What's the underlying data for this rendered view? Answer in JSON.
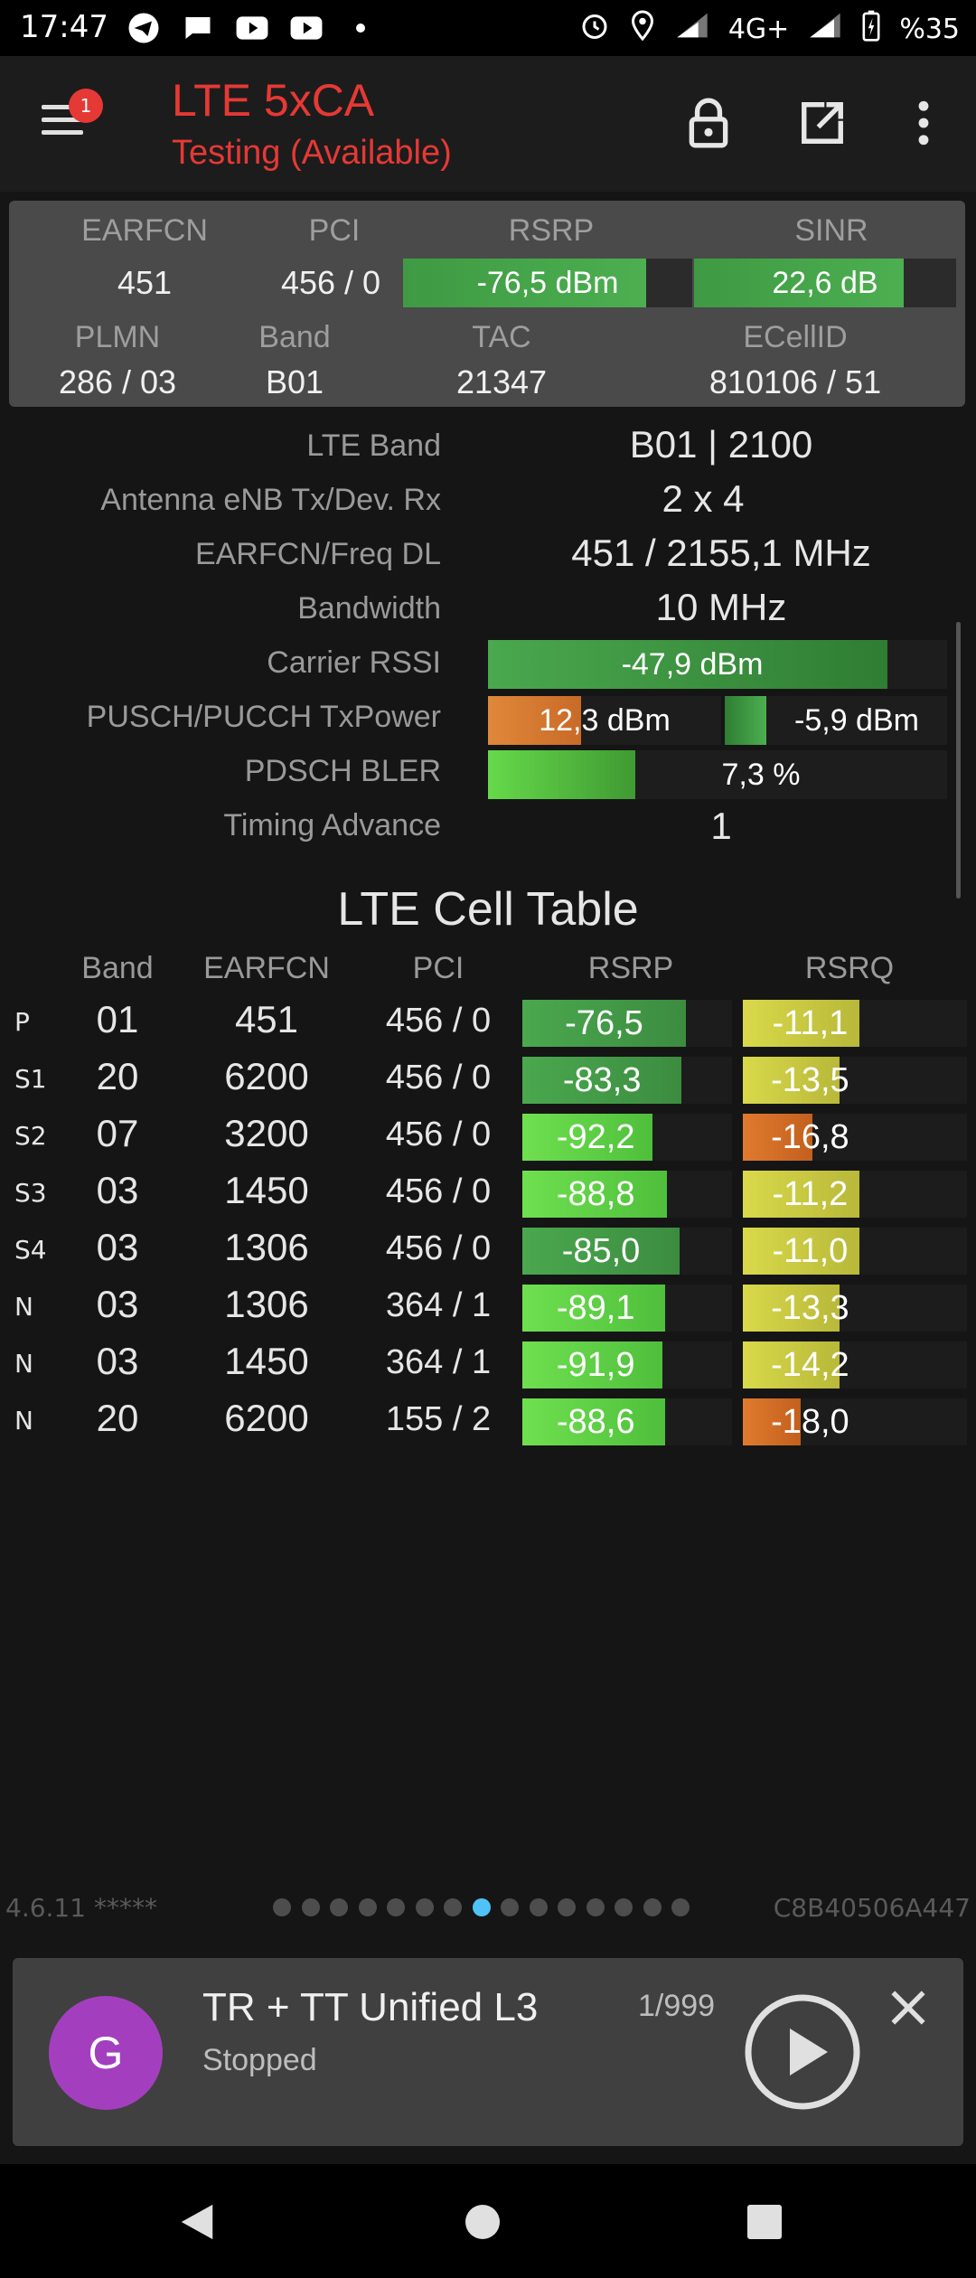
{
  "status_bar": {
    "time": "17:47",
    "network": "4G+",
    "battery": "%35",
    "left_icons": [
      "telegram-icon",
      "chat-icon",
      "youtube-icon",
      "youtube-icon",
      "dot-icon"
    ],
    "right_icons": [
      "alarm-icon",
      "location-icon",
      "signal-icon",
      "signal-icon",
      "battery-charging-icon"
    ]
  },
  "app_bar": {
    "title": "LTE 5xCA",
    "subtitle": "Testing (Available)",
    "menu_badge": "1",
    "actions": [
      "lock-icon",
      "open-external-icon",
      "more-vert-icon"
    ]
  },
  "serving_cell": {
    "earfcn_label": "EARFCN",
    "earfcn": "451",
    "pci_label": "PCI",
    "pci": "456 / 0",
    "rsrp_label": "RSRP",
    "rsrp": "-76,5 dBm",
    "rsrp_level": 0.84,
    "sinr_label": "SINR",
    "sinr": "22,6 dB",
    "sinr_level": 0.8,
    "plmn_label": "PLMN",
    "plmn": "286 / 03",
    "band_label": "Band",
    "band": "B01",
    "tac_label": "TAC",
    "tac": "21347",
    "ecellid_label": "ECellID",
    "ecellid": "810106 / 51"
  },
  "details": {
    "lte_band_label": "LTE Band",
    "lte_band": "B01 | 2100",
    "antenna_label": "Antenna eNB Tx/Dev. Rx",
    "antenna": "2 x 4",
    "earfcn_freq_label": "EARFCN/Freq DL",
    "earfcn_freq": "451 / 2155,1 MHz",
    "bandwidth_label": "Bandwidth",
    "bandwidth": "10 MHz",
    "rssi_label": "Carrier RSSI",
    "rssi": "-47,9 dBm",
    "rssi_level": 0.87,
    "txpower_label": "PUSCH/PUCCH TxPower",
    "pusch": "12,3 dBm",
    "pusch_level": 0.4,
    "pucch": "-5,9 dBm",
    "pucch_level": 0.28,
    "bler_label": "PDSCH BLER",
    "bler": "7,3 %",
    "bler_level": 0.32,
    "ta_label": "Timing Advance",
    "ta": "1"
  },
  "cell_table": {
    "title": "LTE Cell Table",
    "headers": [
      "Band",
      "EARFCN",
      "PCI",
      "RSRP",
      "RSRQ"
    ],
    "rows": [
      {
        "type": "P",
        "band": "01",
        "earfcn": "451",
        "pci": "456 / 0",
        "rsrp": "-76,5",
        "rsrp_level": 0.78,
        "rsrq": "-11,1",
        "rsrq_level": 0.52
      },
      {
        "type": "S1",
        "band": "20",
        "earfcn": "6200",
        "pci": "456 / 0",
        "rsrp": "-83,3",
        "rsrp_level": 0.76,
        "rsrq": "-13,5",
        "rsrq_level": 0.43
      },
      {
        "type": "S2",
        "band": "07",
        "earfcn": "3200",
        "pci": "456 / 0",
        "rsrp": "-92,2",
        "rsrp_level": 0.62,
        "rsrq": "-16,8",
        "rsrq_level": 0.31
      },
      {
        "type": "S3",
        "band": "03",
        "earfcn": "1450",
        "pci": "456 / 0",
        "rsrp": "-88,8",
        "rsrp_level": 0.69,
        "rsrq": "-11,2",
        "rsrq_level": 0.52
      },
      {
        "type": "S4",
        "band": "03",
        "earfcn": "1306",
        "pci": "456 / 0",
        "rsrp": "-85,0",
        "rsrp_level": 0.75,
        "rsrq": "-11,0",
        "rsrq_level": 0.52
      },
      {
        "type": "N",
        "band": "03",
        "earfcn": "1306",
        "pci": "364 / 1",
        "rsrp": "-89,1",
        "rsrp_level": 0.68,
        "rsrq": "-13,3",
        "rsrq_level": 0.43
      },
      {
        "type": "N",
        "band": "03",
        "earfcn": "1450",
        "pci": "364 / 1",
        "rsrp": "-91,9",
        "rsrp_level": 0.67,
        "rsrq": "-14,2",
        "rsrq_level": 0.43
      },
      {
        "type": "N",
        "band": "20",
        "earfcn": "6200",
        "pci": "155 / 2",
        "rsrp": "-88,6",
        "rsrp_level": 0.68,
        "rsrq": "-18,0",
        "rsrq_level": 0.26
      }
    ]
  },
  "footer": {
    "version": "4.6.11 *****",
    "device_id": "C8B40506A447",
    "page_count": 15,
    "active_page": 8
  },
  "player": {
    "avatar_letter": "G",
    "title": "TR + TT Unified L3",
    "status": "Stopped",
    "count": "1/999"
  },
  "nav_bar": {
    "icons": [
      "back-icon",
      "home-icon",
      "recents-icon"
    ]
  },
  "colors": {
    "accent_red": "#e53935",
    "good_green": "#4caf50",
    "mid_green": "#66d94a",
    "rsrq_yellow": "#d4d44a",
    "rsrq_orange": "#e07a2e",
    "tx_orange": "#e0883a",
    "active_dot": "#4fc3f7"
  }
}
